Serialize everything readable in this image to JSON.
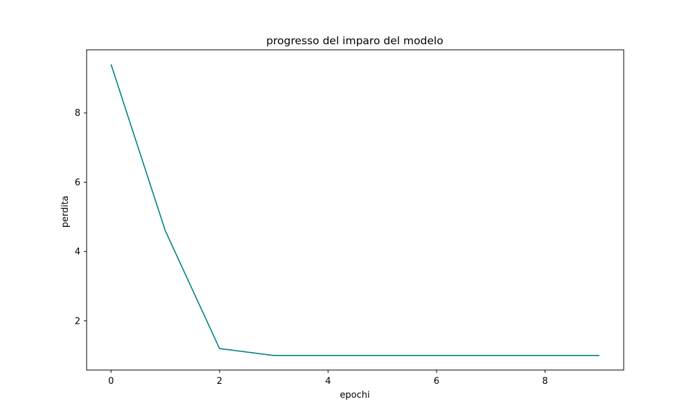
{
  "chart_data": {
    "type": "line",
    "title": "progresso del imparo del modelo",
    "xlabel": "epochi",
    "ylabel": "perdita",
    "xlim": [
      -0.45,
      9.45
    ],
    "ylim": [
      0.58,
      9.82
    ],
    "xticks": [
      0,
      2,
      4,
      6,
      8
    ],
    "xtick_labels": [
      "0",
      "2",
      "4",
      "6",
      "8"
    ],
    "yticks": [
      2,
      4,
      6,
      8
    ],
    "ytick_labels": [
      "2",
      "4",
      "6",
      "8"
    ],
    "grid": false,
    "legend": "none",
    "series": [
      {
        "color": "#008080",
        "x": [
          0,
          1,
          2,
          3,
          4,
          5,
          6,
          7,
          8,
          9
        ],
        "y": [
          9.4,
          4.6,
          1.2,
          1.0,
          1.0,
          1.0,
          1.0,
          1.0,
          1.0,
          1.0
        ]
      }
    ]
  }
}
